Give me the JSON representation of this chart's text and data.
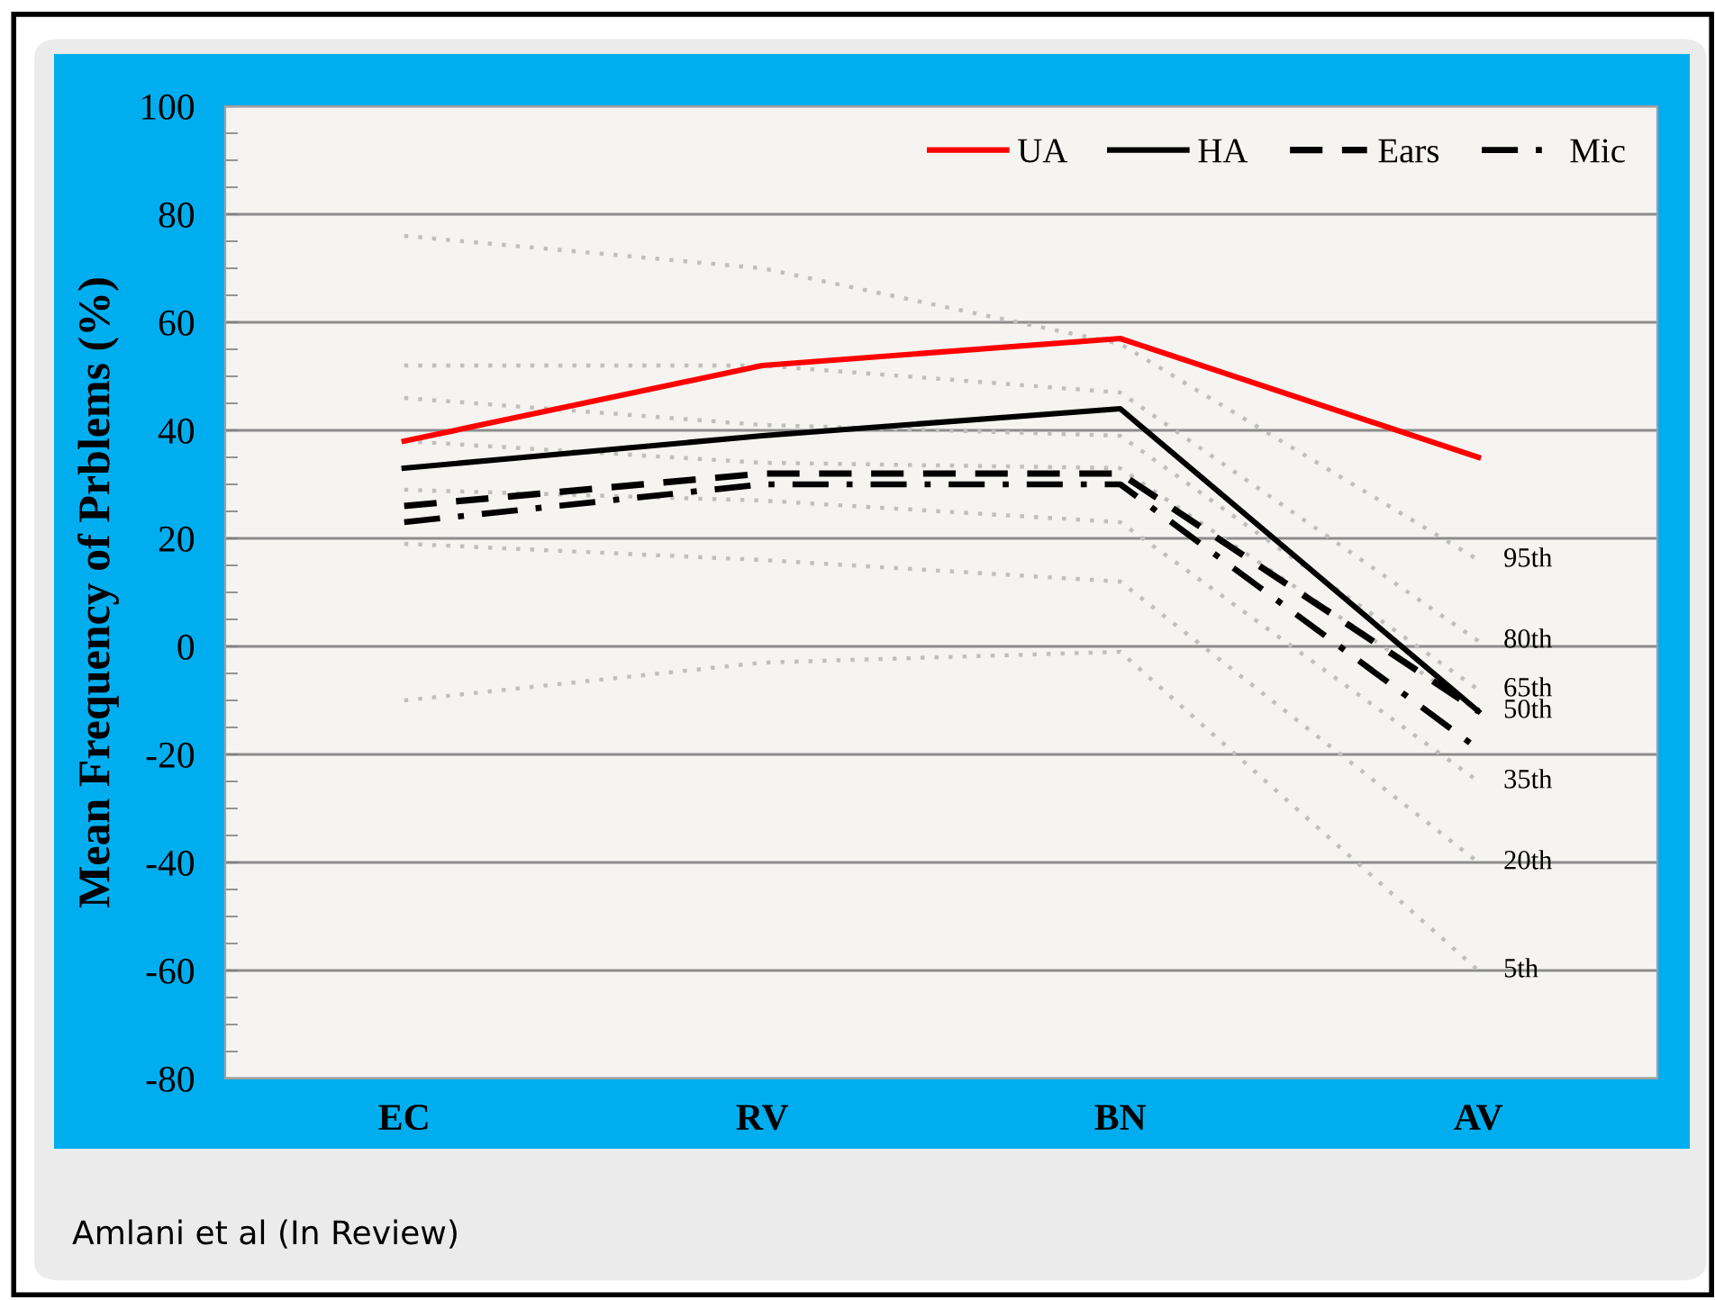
{
  "chart_data": {
    "type": "line",
    "ylabel": "Mean Frequency of Prblems (%)",
    "categories": [
      "EC",
      "RV",
      "BN",
      "AV"
    ],
    "ylim": [
      -80,
      100
    ],
    "yticks": [
      -80,
      -60,
      -40,
      -20,
      0,
      20,
      40,
      60,
      80,
      100
    ],
    "grid": "y",
    "legend": "top right",
    "annotations": [
      "Amlani et al (In Review)"
    ],
    "series": [
      {
        "name": "95th",
        "color": "#bfbfbf",
        "line_style": "dotted",
        "values": [
          76,
          70,
          56,
          16
        ]
      },
      {
        "name": "80th",
        "color": "#bfbfbf",
        "line_style": "dotted",
        "values": [
          52,
          52,
          47,
          1
        ]
      },
      {
        "name": "65th",
        "color": "#bfbfbf",
        "line_style": "dotted",
        "values": [
          46,
          41,
          39,
          -8
        ]
      },
      {
        "name": "50th",
        "color": "#bfbfbf",
        "line_style": "dotted",
        "values": [
          38,
          34,
          33,
          -12
        ]
      },
      {
        "name": "35th",
        "color": "#bfbfbf",
        "line_style": "dotted",
        "values": [
          29,
          27,
          23,
          -25
        ]
      },
      {
        "name": "20th",
        "color": "#bfbfbf",
        "line_style": "dotted",
        "values": [
          19,
          16,
          12,
          -40
        ]
      },
      {
        "name": "5th",
        "color": "#bfbfbf",
        "line_style": "dotted",
        "values": [
          -10,
          -3,
          -1,
          -60
        ]
      },
      {
        "name": "UA",
        "color": "#ff0000",
        "line_style": "solid",
        "values": [
          38,
          52,
          57,
          35
        ]
      },
      {
        "name": "HA",
        "color": "#000000",
        "line_style": "solid",
        "values": [
          33,
          39,
          44,
          -12
        ]
      },
      {
        "name": "Ears",
        "color": "#000000",
        "line_style": "dashed",
        "values": [
          26,
          32,
          32,
          -12
        ]
      },
      {
        "name": "Mic",
        "color": "#000000",
        "line_style": "dashdot",
        "values": [
          23,
          30,
          30,
          -19
        ]
      }
    ]
  }
}
